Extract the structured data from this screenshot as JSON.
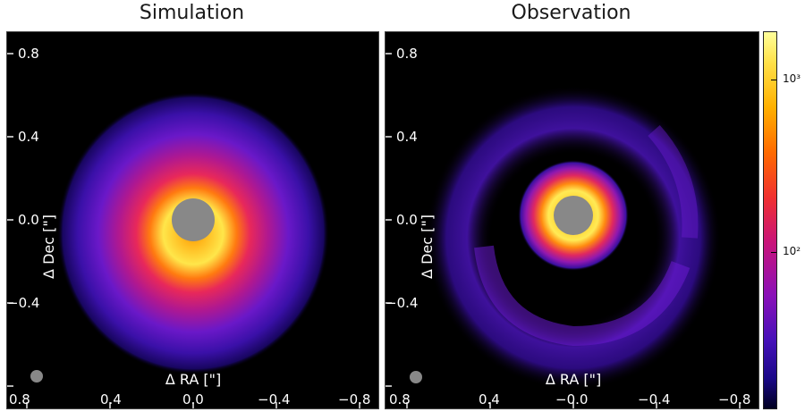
{
  "titles": {
    "simulation": "Simulation",
    "observation": "Observation"
  },
  "axes": {
    "xlabel": "Δ RA [\"]",
    "ylabel": "Δ Dec [\"]",
    "yticks": [
      "0.8",
      "0.4",
      "0.0",
      "−0.4"
    ],
    "xticks_sim": [
      "0.8",
      "0.4",
      "0.0",
      "−0.4",
      "−0.8"
    ],
    "xticks_obs": [
      "0.8",
      "0.4",
      "−0.0",
      "−0.4",
      "−0.8"
    ]
  },
  "colorbar": {
    "labels": [
      "10³",
      "10²"
    ],
    "colors": [
      "#ffff9a",
      "#ffb000",
      "#f03030",
      "#8a10b8",
      "#1a0888"
    ]
  },
  "colors": {
    "background": "#000000",
    "mask": "#888888",
    "beam": "#888888"
  }
}
